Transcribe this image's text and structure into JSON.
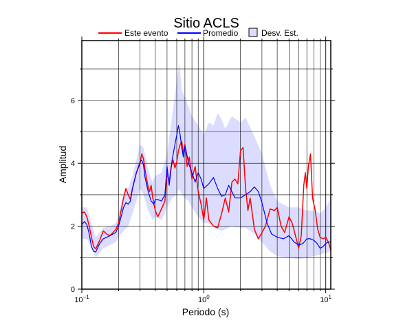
{
  "chart_data": {
    "type": "line",
    "title": "Sitio ACLS",
    "xlabel": "Periodo (s)",
    "ylabel": "Amplitud",
    "x_scale": "log",
    "xlim": [
      0.1,
      11
    ],
    "ylim": [
      0,
      7.9
    ],
    "grid": true,
    "legend_position": "top",
    "x_ticks": [
      {
        "value": 0.1,
        "base": "10",
        "exp": "−1"
      },
      {
        "value": 1,
        "base": "10",
        "exp": "0"
      },
      {
        "value": 10,
        "base": "10",
        "exp": "1"
      }
    ],
    "y_ticks": [
      {
        "value": 0,
        "label": "0"
      },
      {
        "value": 2,
        "label": "2"
      },
      {
        "value": 4,
        "label": "4"
      },
      {
        "value": 6,
        "label": "6"
      }
    ],
    "y_minor_ticks": [
      1,
      3,
      5,
      7
    ],
    "legend": [
      {
        "label": "Este evento",
        "kind": "line",
        "color": "#ff0000"
      },
      {
        "label": "Promedio",
        "kind": "line",
        "color": "#0000ff"
      },
      {
        "label": "Desv. Est.",
        "kind": "box",
        "color": "#dcdcff"
      }
    ],
    "series": [
      {
        "name": "Este evento",
        "color": "#ff0000",
        "x": [
          0.1,
          0.105,
          0.11,
          0.115,
          0.12,
          0.125,
          0.13,
          0.14,
          0.15,
          0.155,
          0.16,
          0.17,
          0.18,
          0.19,
          0.2,
          0.21,
          0.22,
          0.23,
          0.24,
          0.25,
          0.26,
          0.27,
          0.28,
          0.29,
          0.3,
          0.31,
          0.32,
          0.33,
          0.34,
          0.35,
          0.36,
          0.37,
          0.38,
          0.39,
          0.4,
          0.42,
          0.45,
          0.48,
          0.5,
          0.52,
          0.54,
          0.56,
          0.58,
          0.6,
          0.62,
          0.64,
          0.66,
          0.68,
          0.7,
          0.73,
          0.76,
          0.8,
          0.85,
          0.9,
          0.95,
          1.0,
          1.05,
          1.1,
          1.2,
          1.3,
          1.4,
          1.5,
          1.6,
          1.7,
          1.8,
          1.9,
          2.0,
          2.1,
          2.2,
          2.3,
          2.4,
          2.6,
          2.8,
          3.0,
          3.2,
          3.5,
          3.8,
          4.0,
          4.3,
          4.6,
          5.0,
          5.3,
          5.6,
          6.0,
          6.3,
          6.6,
          6.8,
          7.0,
          7.2,
          7.5,
          7.8,
          8.2,
          8.6,
          9.0,
          9.5,
          10.0,
          10.5,
          11.0
        ],
        "y": [
          2.42,
          2.45,
          2.3,
          2.0,
          1.65,
          1.35,
          1.28,
          1.55,
          1.85,
          1.8,
          1.75,
          1.7,
          1.8,
          1.9,
          2.1,
          2.5,
          2.9,
          3.2,
          3.0,
          2.85,
          3.2,
          3.45,
          3.7,
          3.85,
          4.0,
          4.3,
          4.15,
          3.8,
          3.5,
          3.25,
          3.1,
          3.3,
          2.95,
          2.7,
          2.5,
          2.3,
          2.55,
          2.8,
          3.7,
          3.4,
          3.9,
          4.1,
          3.85,
          4.05,
          4.4,
          4.6,
          4.7,
          4.3,
          4.6,
          3.9,
          4.2,
          3.5,
          3.9,
          3.1,
          2.7,
          2.2,
          2.9,
          2.2,
          2.0,
          1.95,
          2.4,
          2.9,
          2.45,
          3.4,
          3.5,
          3.35,
          4.4,
          4.5,
          3.2,
          2.5,
          2.9,
          1.9,
          1.6,
          1.8,
          2.0,
          2.55,
          2.5,
          2.6,
          2.0,
          1.8,
          2.3,
          2.1,
          1.75,
          1.3,
          1.7,
          3.3,
          3.7,
          3.2,
          3.9,
          4.3,
          2.9,
          2.5,
          1.9,
          1.65,
          1.6,
          1.65,
          1.5,
          1.25
        ]
      },
      {
        "name": "Promedio",
        "color": "#0000ff",
        "x": [
          0.1,
          0.105,
          0.11,
          0.115,
          0.12,
          0.125,
          0.13,
          0.14,
          0.15,
          0.16,
          0.17,
          0.18,
          0.19,
          0.2,
          0.21,
          0.22,
          0.23,
          0.24,
          0.25,
          0.26,
          0.28,
          0.3,
          0.31,
          0.32,
          0.33,
          0.35,
          0.37,
          0.39,
          0.4,
          0.42,
          0.45,
          0.48,
          0.5,
          0.52,
          0.55,
          0.58,
          0.6,
          0.62,
          0.64,
          0.66,
          0.68,
          0.7,
          0.72,
          0.75,
          0.8,
          0.85,
          0.9,
          0.95,
          1.0,
          1.1,
          1.2,
          1.3,
          1.4,
          1.5,
          1.6,
          1.7,
          1.8,
          2.0,
          2.2,
          2.4,
          2.6,
          2.8,
          3.0,
          3.3,
          3.6,
          4.0,
          4.5,
          5.0,
          5.5,
          6.0,
          6.5,
          7.0,
          7.5,
          8.0,
          8.5,
          9.0,
          9.5,
          10.0,
          10.5,
          11.0
        ],
        "y": [
          2.05,
          2.15,
          2.05,
          1.75,
          1.35,
          1.2,
          1.18,
          1.45,
          1.6,
          1.65,
          1.7,
          1.75,
          1.8,
          2.0,
          2.3,
          2.6,
          2.75,
          2.7,
          2.8,
          3.2,
          3.7,
          4.05,
          4.1,
          3.95,
          3.55,
          3.1,
          2.8,
          2.7,
          2.85,
          2.85,
          2.8,
          3.0,
          3.9,
          3.3,
          4.1,
          4.6,
          4.9,
          5.2,
          4.9,
          4.5,
          4.2,
          4.55,
          4.35,
          4.0,
          3.7,
          3.4,
          3.7,
          3.5,
          3.2,
          3.35,
          3.55,
          3.2,
          2.95,
          3.0,
          3.3,
          3.1,
          2.9,
          2.9,
          3.0,
          3.1,
          3.25,
          3.1,
          2.75,
          2.1,
          1.75,
          1.65,
          1.6,
          1.7,
          1.5,
          1.4,
          1.45,
          1.6,
          1.6,
          1.55,
          1.45,
          1.3,
          1.35,
          1.45,
          1.5,
          1.5
        ]
      },
      {
        "name": "Desv. Est.",
        "color": "#dcdcff",
        "x": [
          0.1,
          0.11,
          0.12,
          0.13,
          0.14,
          0.15,
          0.17,
          0.19,
          0.2,
          0.22,
          0.24,
          0.26,
          0.28,
          0.3,
          0.32,
          0.35,
          0.38,
          0.4,
          0.45,
          0.5,
          0.55,
          0.6,
          0.63,
          0.66,
          0.7,
          0.75,
          0.8,
          0.9,
          1.0,
          1.1,
          1.2,
          1.3,
          1.4,
          1.5,
          1.7,
          2.0,
          2.2,
          2.5,
          3.0,
          3.5,
          4.0,
          5.0,
          6.0,
          7.0,
          8.0,
          9.0,
          10.0,
          11.0
        ],
        "upper": [
          2.6,
          2.6,
          2.1,
          1.65,
          1.8,
          1.95,
          2.0,
          2.1,
          2.4,
          3.0,
          3.2,
          3.6,
          4.1,
          4.6,
          4.5,
          3.8,
          3.4,
          3.6,
          3.7,
          4.3,
          5.5,
          6.6,
          7.2,
          6.3,
          6.1,
          5.8,
          5.5,
          5.2,
          4.9,
          5.3,
          5.2,
          5.6,
          5.4,
          5.1,
          5.5,
          5.3,
          5.45,
          5.0,
          4.3,
          3.3,
          2.8,
          2.6,
          2.6,
          2.5,
          2.5,
          2.4,
          2.6,
          2.9
        ],
        "lower": [
          1.6,
          1.6,
          1.3,
          1.0,
          1.15,
          1.3,
          1.4,
          1.5,
          1.65,
          1.85,
          2.0,
          2.4,
          2.8,
          3.2,
          3.0,
          2.5,
          2.2,
          2.3,
          2.2,
          2.6,
          2.9,
          3.0,
          3.2,
          3.0,
          2.9,
          2.8,
          2.6,
          2.3,
          2.1,
          2.1,
          2.0,
          1.9,
          1.85,
          1.9,
          2.0,
          1.95,
          1.95,
          1.8,
          1.5,
          1.2,
          1.05,
          1.0,
          0.95,
          1.0,
          1.05,
          1.1,
          1.15,
          1.2
        ]
      }
    ]
  }
}
